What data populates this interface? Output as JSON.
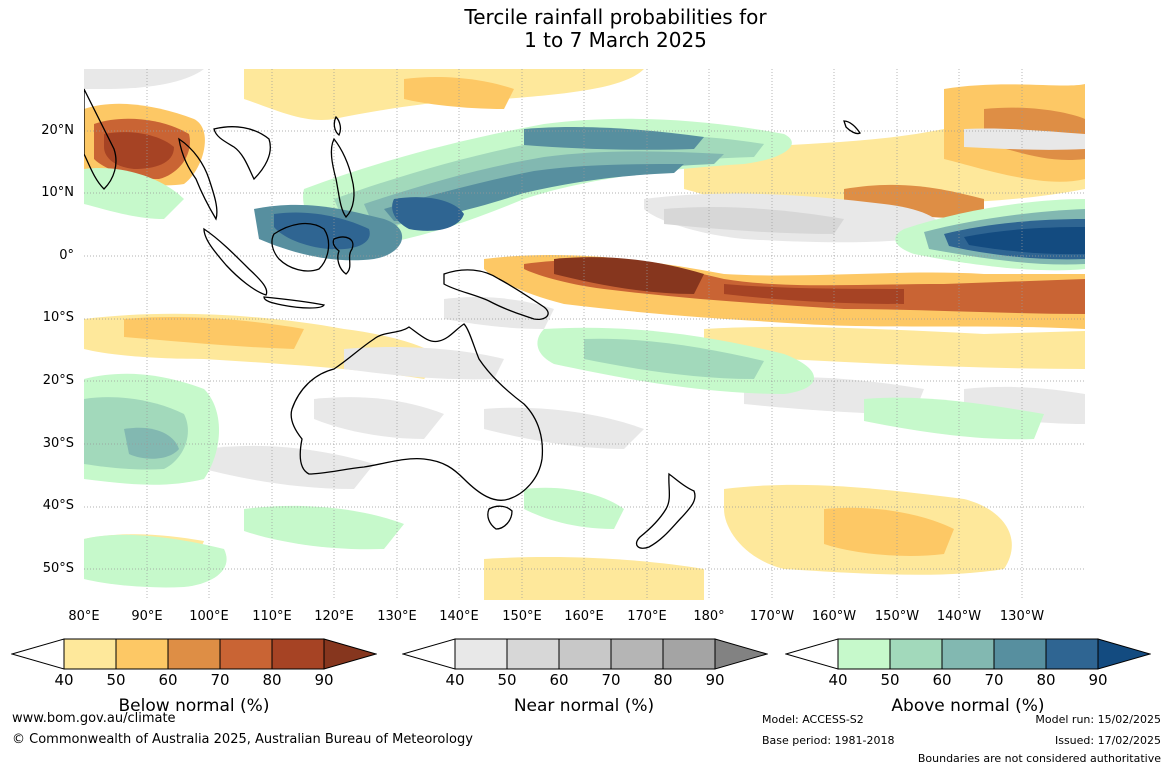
{
  "title": {
    "line1": "Tercile rainfall probabilities for",
    "line2": "1 to 7 March 2025"
  },
  "map": {
    "region": "Australia, Maritime Continent and tropical Pacific",
    "lat_labels": [
      "20°N",
      "10°N",
      "0°",
      "10°S",
      "20°S",
      "30°S",
      "40°S",
      "50°S"
    ],
    "lon_labels": [
      "80°E",
      "90°E",
      "100°E",
      "110°E",
      "120°E",
      "130°E",
      "140°E",
      "150°E",
      "160°E",
      "170°E",
      "180°",
      "170°W",
      "160°W",
      "150°W",
      "140°W",
      "130°W"
    ],
    "colors": {
      "below": [
        "#fee89b",
        "#fdc865",
        "#de8e45",
        "#c96434",
        "#a64324",
        "#86361e"
      ],
      "near": [
        "#e8e8e8",
        "#d7d7d7",
        "#c8c8c8",
        "#b5b5b5",
        "#a4a4a4",
        "#828282"
      ],
      "above": [
        "#c6f9cb",
        "#a2d9bb",
        "#82b8b1",
        "#578f9f",
        "#2f6592",
        "#134b80"
      ]
    }
  },
  "colorbars": [
    {
      "label": "Below normal (%)",
      "ticks": [
        "40",
        "50",
        "60",
        "70",
        "80",
        "90"
      ]
    },
    {
      "label": "Near normal (%)",
      "ticks": [
        "40",
        "50",
        "60",
        "70",
        "80",
        "90"
      ]
    },
    {
      "label": "Above normal (%)",
      "ticks": [
        "40",
        "50",
        "60",
        "70",
        "80",
        "90"
      ]
    }
  ],
  "footer": {
    "url": "www.bom.gov.au/climate",
    "copyright": "© Commonwealth of Australia 2025, Australian Bureau of Meteorology",
    "model": "Model: ACCESS-S2",
    "base_period": "Base period: 1981-2018",
    "model_run": "Model run: 15/02/2025",
    "issued": "Issued: 17/02/2025",
    "disclaimer": "Boundaries are not considered authoritative"
  }
}
